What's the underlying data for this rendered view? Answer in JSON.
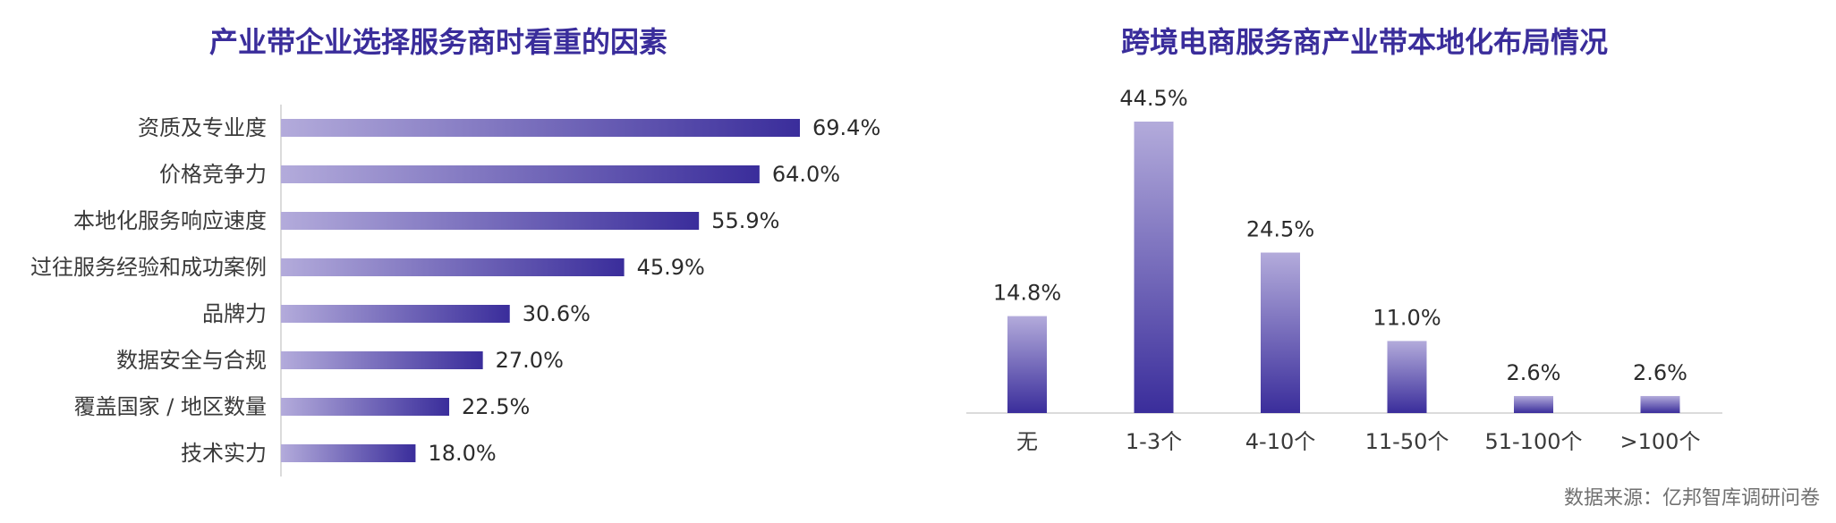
{
  "charts": [
    {
      "type": "bar",
      "orientation": "horizontal",
      "title": "产业带企业选择服务商时看重的因素",
      "categories": [
        "资质及专业度",
        "价格竞争力",
        "本地化服务响应速度",
        "过往服务经验和成功案例",
        "品牌力",
        "数据安全与合规",
        "覆盖国家 / 地区数量",
        "技术实力"
      ],
      "values": [
        69.4,
        64.0,
        55.9,
        45.9,
        30.6,
        27.0,
        22.5,
        18.0
      ],
      "labels": [
        "69.4%",
        "64.0%",
        "55.9%",
        "45.9%",
        "30.6%",
        "27.0%",
        "22.5%",
        "18.0%"
      ],
      "xlim": [
        0,
        100
      ],
      "unit": "%"
    },
    {
      "type": "bar",
      "orientation": "vertical",
      "title": "跨境电商服务商产业带本地化布局情况",
      "categories": [
        "无",
        "1-3个",
        "4-10个",
        "11-50个",
        "51-100个",
        ">100个"
      ],
      "values": [
        14.8,
        44.5,
        24.5,
        11.0,
        2.6,
        2.6
      ],
      "labels": [
        "14.8%",
        "44.5%",
        "24.5%",
        "11.0%",
        "2.6%",
        "2.6%"
      ],
      "ylim": [
        0,
        50
      ],
      "unit": "%"
    }
  ],
  "colors": {
    "title": "#3a2d9b",
    "bar_dark": "#3a2d9b",
    "bar_light": "#b3abdb",
    "axis": "#cfcfcf"
  },
  "source": "数据来源：亿邦智库调研问卷"
}
